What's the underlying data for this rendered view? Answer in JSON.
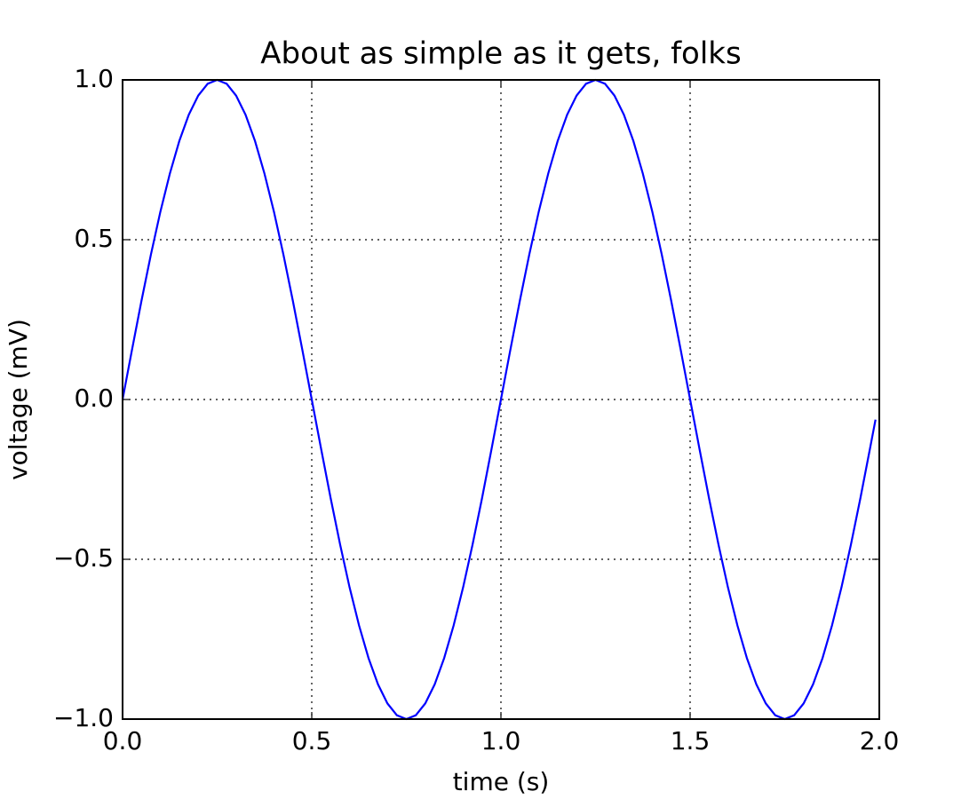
{
  "chart_data": {
    "type": "line",
    "title": "About as simple as it gets, folks",
    "x_label": "time (s)",
    "y_label": "voltage (mV)",
    "x": [
      0,
      0.025,
      0.05,
      0.075,
      0.1,
      0.125,
      0.15,
      0.175,
      0.2,
      0.225,
      0.25,
      0.275,
      0.3,
      0.325,
      0.35,
      0.375,
      0.4,
      0.425,
      0.45,
      0.475,
      0.5,
      0.525,
      0.55,
      0.575,
      0.6,
      0.625,
      0.65,
      0.675,
      0.7,
      0.725,
      0.75,
      0.775,
      0.8,
      0.825,
      0.85,
      0.875,
      0.9,
      0.925,
      0.95,
      0.975,
      1,
      1.025,
      1.05,
      1.075,
      1.1,
      1.125,
      1.15,
      1.175,
      1.2,
      1.225,
      1.25,
      1.275,
      1.3,
      1.325,
      1.35,
      1.375,
      1.4,
      1.425,
      1.45,
      1.475,
      1.5,
      1.525,
      1.55,
      1.575,
      1.6,
      1.625,
      1.65,
      1.675,
      1.7,
      1.725,
      1.75,
      1.775,
      1.8,
      1.825,
      1.85,
      1.875,
      1.9,
      1.925,
      1.95,
      1.975,
      1.99
    ],
    "values": [
      0,
      0.156,
      0.309,
      0.454,
      0.588,
      0.707,
      0.809,
      0.891,
      0.951,
      0.988,
      1,
      0.988,
      0.951,
      0.891,
      0.809,
      0.707,
      0.588,
      0.454,
      0.309,
      0.156,
      0,
      -0.156,
      -0.309,
      -0.454,
      -0.588,
      -0.707,
      -0.809,
      -0.891,
      -0.951,
      -0.988,
      -1,
      -0.988,
      -0.951,
      -0.891,
      -0.809,
      -0.707,
      -0.588,
      -0.454,
      -0.309,
      -0.156,
      0,
      0.156,
      0.309,
      0.454,
      0.588,
      0.707,
      0.809,
      0.891,
      0.951,
      0.988,
      1,
      0.988,
      0.951,
      0.891,
      0.809,
      0.707,
      0.588,
      0.454,
      0.309,
      0.156,
      0,
      -0.156,
      -0.309,
      -0.454,
      -0.588,
      -0.707,
      -0.809,
      -0.891,
      -0.951,
      -0.988,
      -1,
      -0.988,
      -0.951,
      -0.891,
      -0.809,
      -0.707,
      -0.588,
      -0.454,
      -0.309,
      -0.156,
      -0.063
    ],
    "color": "#0000ff",
    "xlim": [
      0,
      2
    ],
    "xticks": [
      {
        "value": 0,
        "label": "0.0"
      },
      0.5,
      {
        "value": 1,
        "label": "1.0"
      },
      1.5,
      {
        "value": 2,
        "label": "2.0"
      }
    ],
    "ylim": [
      -1,
      1
    ],
    "yticks": [
      {
        "value": -1,
        "label": "−1.0"
      },
      {
        "value": -0.5,
        "label": "−0.5"
      },
      {
        "value": 0,
        "label": "0.0"
      },
      {
        "value": 0.5,
        "label": "0.5"
      },
      {
        "value": 1,
        "label": "1.0"
      }
    ],
    "grid": true
  }
}
